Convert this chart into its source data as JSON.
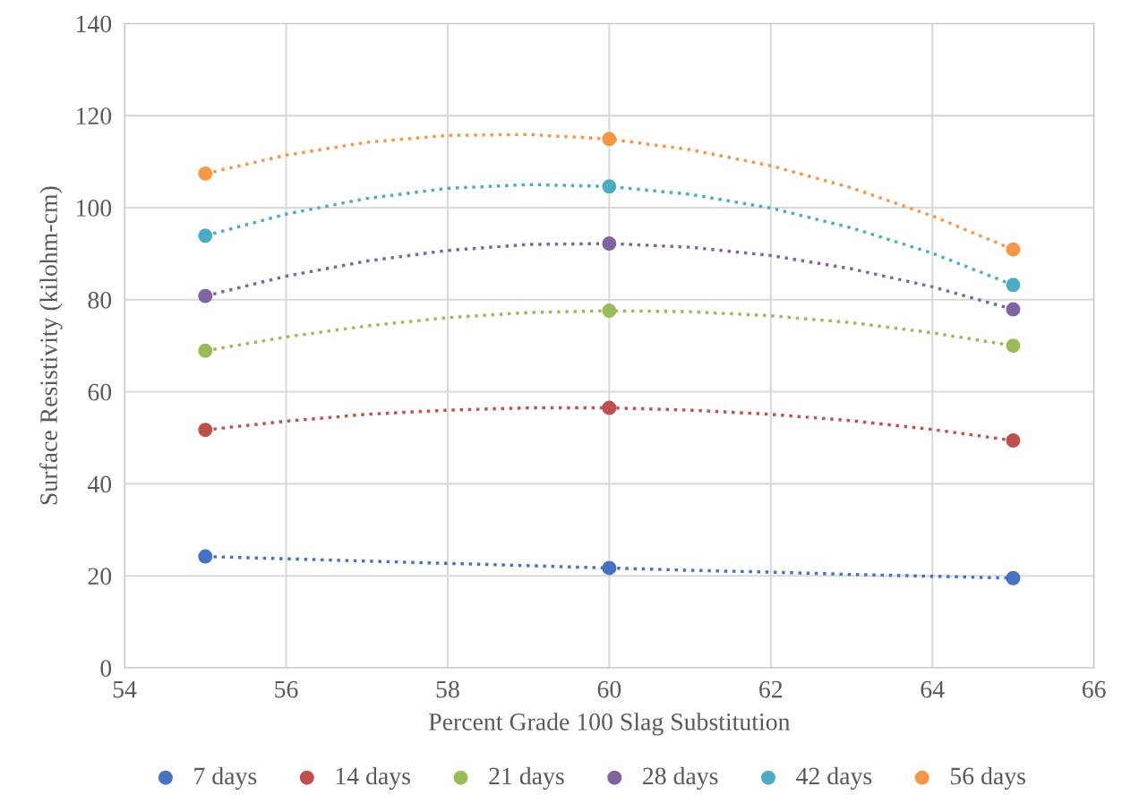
{
  "chart_data": {
    "type": "scatter",
    "xlabel": "Percent Grade 100 Slag Substitution",
    "ylabel": "Surface Resistivity (kilohm-cm)",
    "xlim": [
      54,
      66
    ],
    "xticks": [
      54,
      56,
      58,
      60,
      62,
      64,
      66
    ],
    "ylim": [
      0,
      140
    ],
    "yticks": [
      0,
      20,
      40,
      60,
      80,
      100,
      120,
      140
    ],
    "grid": true,
    "legend": "bottom",
    "marker": "circle",
    "series": [
      {
        "name": "7 days",
        "color": "#4472c4",
        "x": [
          55,
          60,
          65
        ],
        "values": [
          24.2,
          21.7,
          19.5
        ]
      },
      {
        "name": "14 days",
        "color": "#c0504d",
        "x": [
          55,
          60,
          65
        ],
        "values": [
          51.7,
          56.5,
          49.4
        ]
      },
      {
        "name": "21 days",
        "color": "#9bbb59",
        "x": [
          55,
          60,
          65
        ],
        "values": [
          68.9,
          77.6,
          70.0
        ]
      },
      {
        "name": "28 days",
        "color": "#8064a2",
        "x": [
          55,
          60,
          65
        ],
        "values": [
          80.8,
          92.2,
          77.9
        ]
      },
      {
        "name": "42 days",
        "color": "#4bacc6",
        "x": [
          55,
          60,
          65
        ],
        "values": [
          93.9,
          104.6,
          83.2
        ]
      },
      {
        "name": "56 days",
        "color": "#f79646",
        "x": [
          55,
          60,
          65
        ],
        "values": [
          107.4,
          114.9,
          90.9
        ]
      },
      {
        "type": "line",
        "line_style": "dotted",
        "marker": "none",
        "color": "#4472c4",
        "x": [
          55,
          56,
          57,
          58,
          59,
          60,
          61,
          62,
          63,
          64,
          65
        ],
        "values": [
          24.2,
          23.7,
          23.2,
          22.7,
          22.2,
          21.7,
          21.2,
          20.8,
          20.3,
          19.9,
          19.5
        ]
      },
      {
        "type": "line",
        "line_style": "dotted",
        "marker": "none",
        "color": "#c0504d",
        "x": [
          55,
          56,
          57,
          58,
          59,
          60,
          61,
          62,
          63,
          64,
          65
        ],
        "values": [
          51.7,
          53.6,
          55.1,
          56.0,
          56.5,
          56.5,
          56.0,
          55.1,
          53.7,
          51.8,
          49.4
        ]
      },
      {
        "type": "line",
        "line_style": "dotted",
        "marker": "none",
        "color": "#9bbb59",
        "x": [
          55,
          56,
          57,
          58,
          59,
          60,
          61,
          62,
          63,
          64,
          65
        ],
        "values": [
          68.9,
          71.9,
          74.3,
          76.1,
          77.2,
          77.6,
          77.4,
          76.5,
          75.0,
          72.8,
          70.0
        ]
      },
      {
        "type": "line",
        "line_style": "dotted",
        "marker": "none",
        "color": "#8064a2",
        "x": [
          55,
          56,
          57,
          58,
          59,
          60,
          61,
          62,
          63,
          64,
          65
        ],
        "values": [
          80.8,
          85.1,
          88.4,
          90.7,
          92.0,
          92.2,
          91.4,
          89.6,
          86.7,
          82.8,
          77.9
        ]
      },
      {
        "type": "line",
        "line_style": "dotted",
        "marker": "none",
        "color": "#4bacc6",
        "x": [
          55,
          56,
          57,
          58,
          59,
          60,
          61,
          62,
          63,
          64,
          65
        ],
        "values": [
          93.9,
          98.6,
          102.0,
          104.2,
          105.0,
          104.6,
          102.9,
          99.9,
          95.6,
          90.1,
          83.2
        ]
      },
      {
        "type": "line",
        "line_style": "dotted",
        "marker": "none",
        "color": "#f79646",
        "x": [
          55,
          56,
          57,
          58,
          59,
          60,
          61,
          62,
          63,
          64,
          65
        ],
        "values": [
          107.4,
          111.4,
          114.2,
          115.7,
          115.9,
          114.9,
          112.6,
          109.1,
          104.3,
          98.2,
          90.9
        ]
      }
    ]
  }
}
